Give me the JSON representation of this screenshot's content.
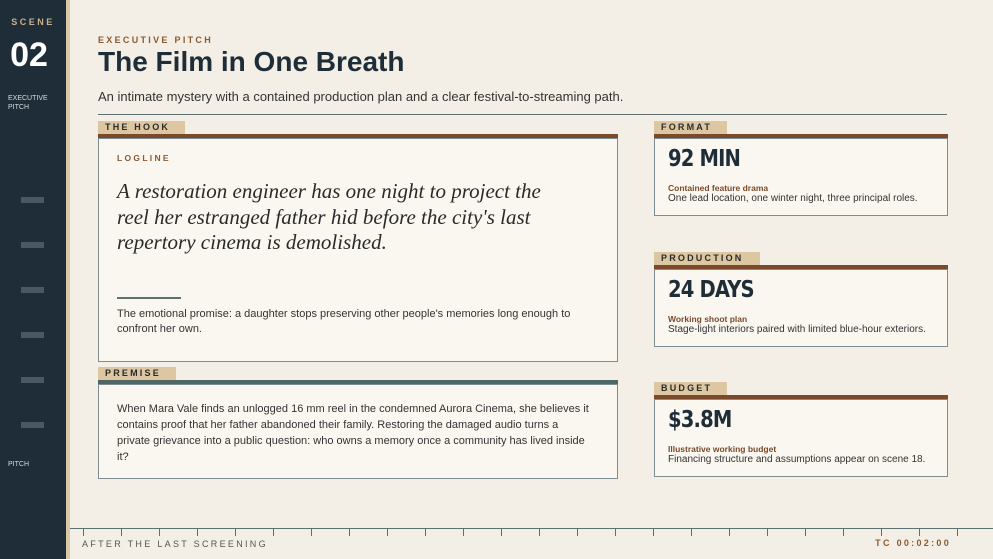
{
  "sidebar": {
    "scene_label": "SCENE",
    "scene_number": "02",
    "section": "EXECUTIVE PITCH",
    "bottom_label": "PITCH"
  },
  "header": {
    "eyebrow": "EXECUTIVE PITCH",
    "title": "The Film in One Breath",
    "subtitle": "An intimate mystery with a contained production plan and a clear festival-to-streaming path."
  },
  "hook": {
    "tag": "THE HOOK",
    "label": "LOGLINE",
    "logline": "A restoration engineer has one night to project the reel her estranged father hid before the city's last repertory cinema is demolished.",
    "promise": "The emotional promise: a daughter stops preserving other people's memories long enough to confront her own."
  },
  "premise": {
    "tag": "PREMISE",
    "text": "When Mara Vale finds an unlogged 16 mm reel in the condemned Aurora Cinema, she believes it contains proof that her father abandoned their family. Restoring the damaged audio turns a private grievance into a public question: who owns a memory once a community has lived inside it?"
  },
  "stats": [
    {
      "tag": "FORMAT",
      "value": "92 MIN",
      "label": "Contained feature drama",
      "note": "One lead location, one winter night, three principal roles."
    },
    {
      "tag": "PRODUCTION",
      "value": "24 DAYS",
      "label": "Working shoot plan",
      "note": "Stage-light interiors paired with limited blue-hour exteriors."
    },
    {
      "tag": "BUDGET",
      "value": "$3.8M",
      "label": "Illustrative working budget",
      "note": "Financing structure and assumptions appear on scene 18."
    }
  ],
  "footer": {
    "left": "AFTER THE LAST SCREENING",
    "right": "TC 00:02:00"
  }
}
